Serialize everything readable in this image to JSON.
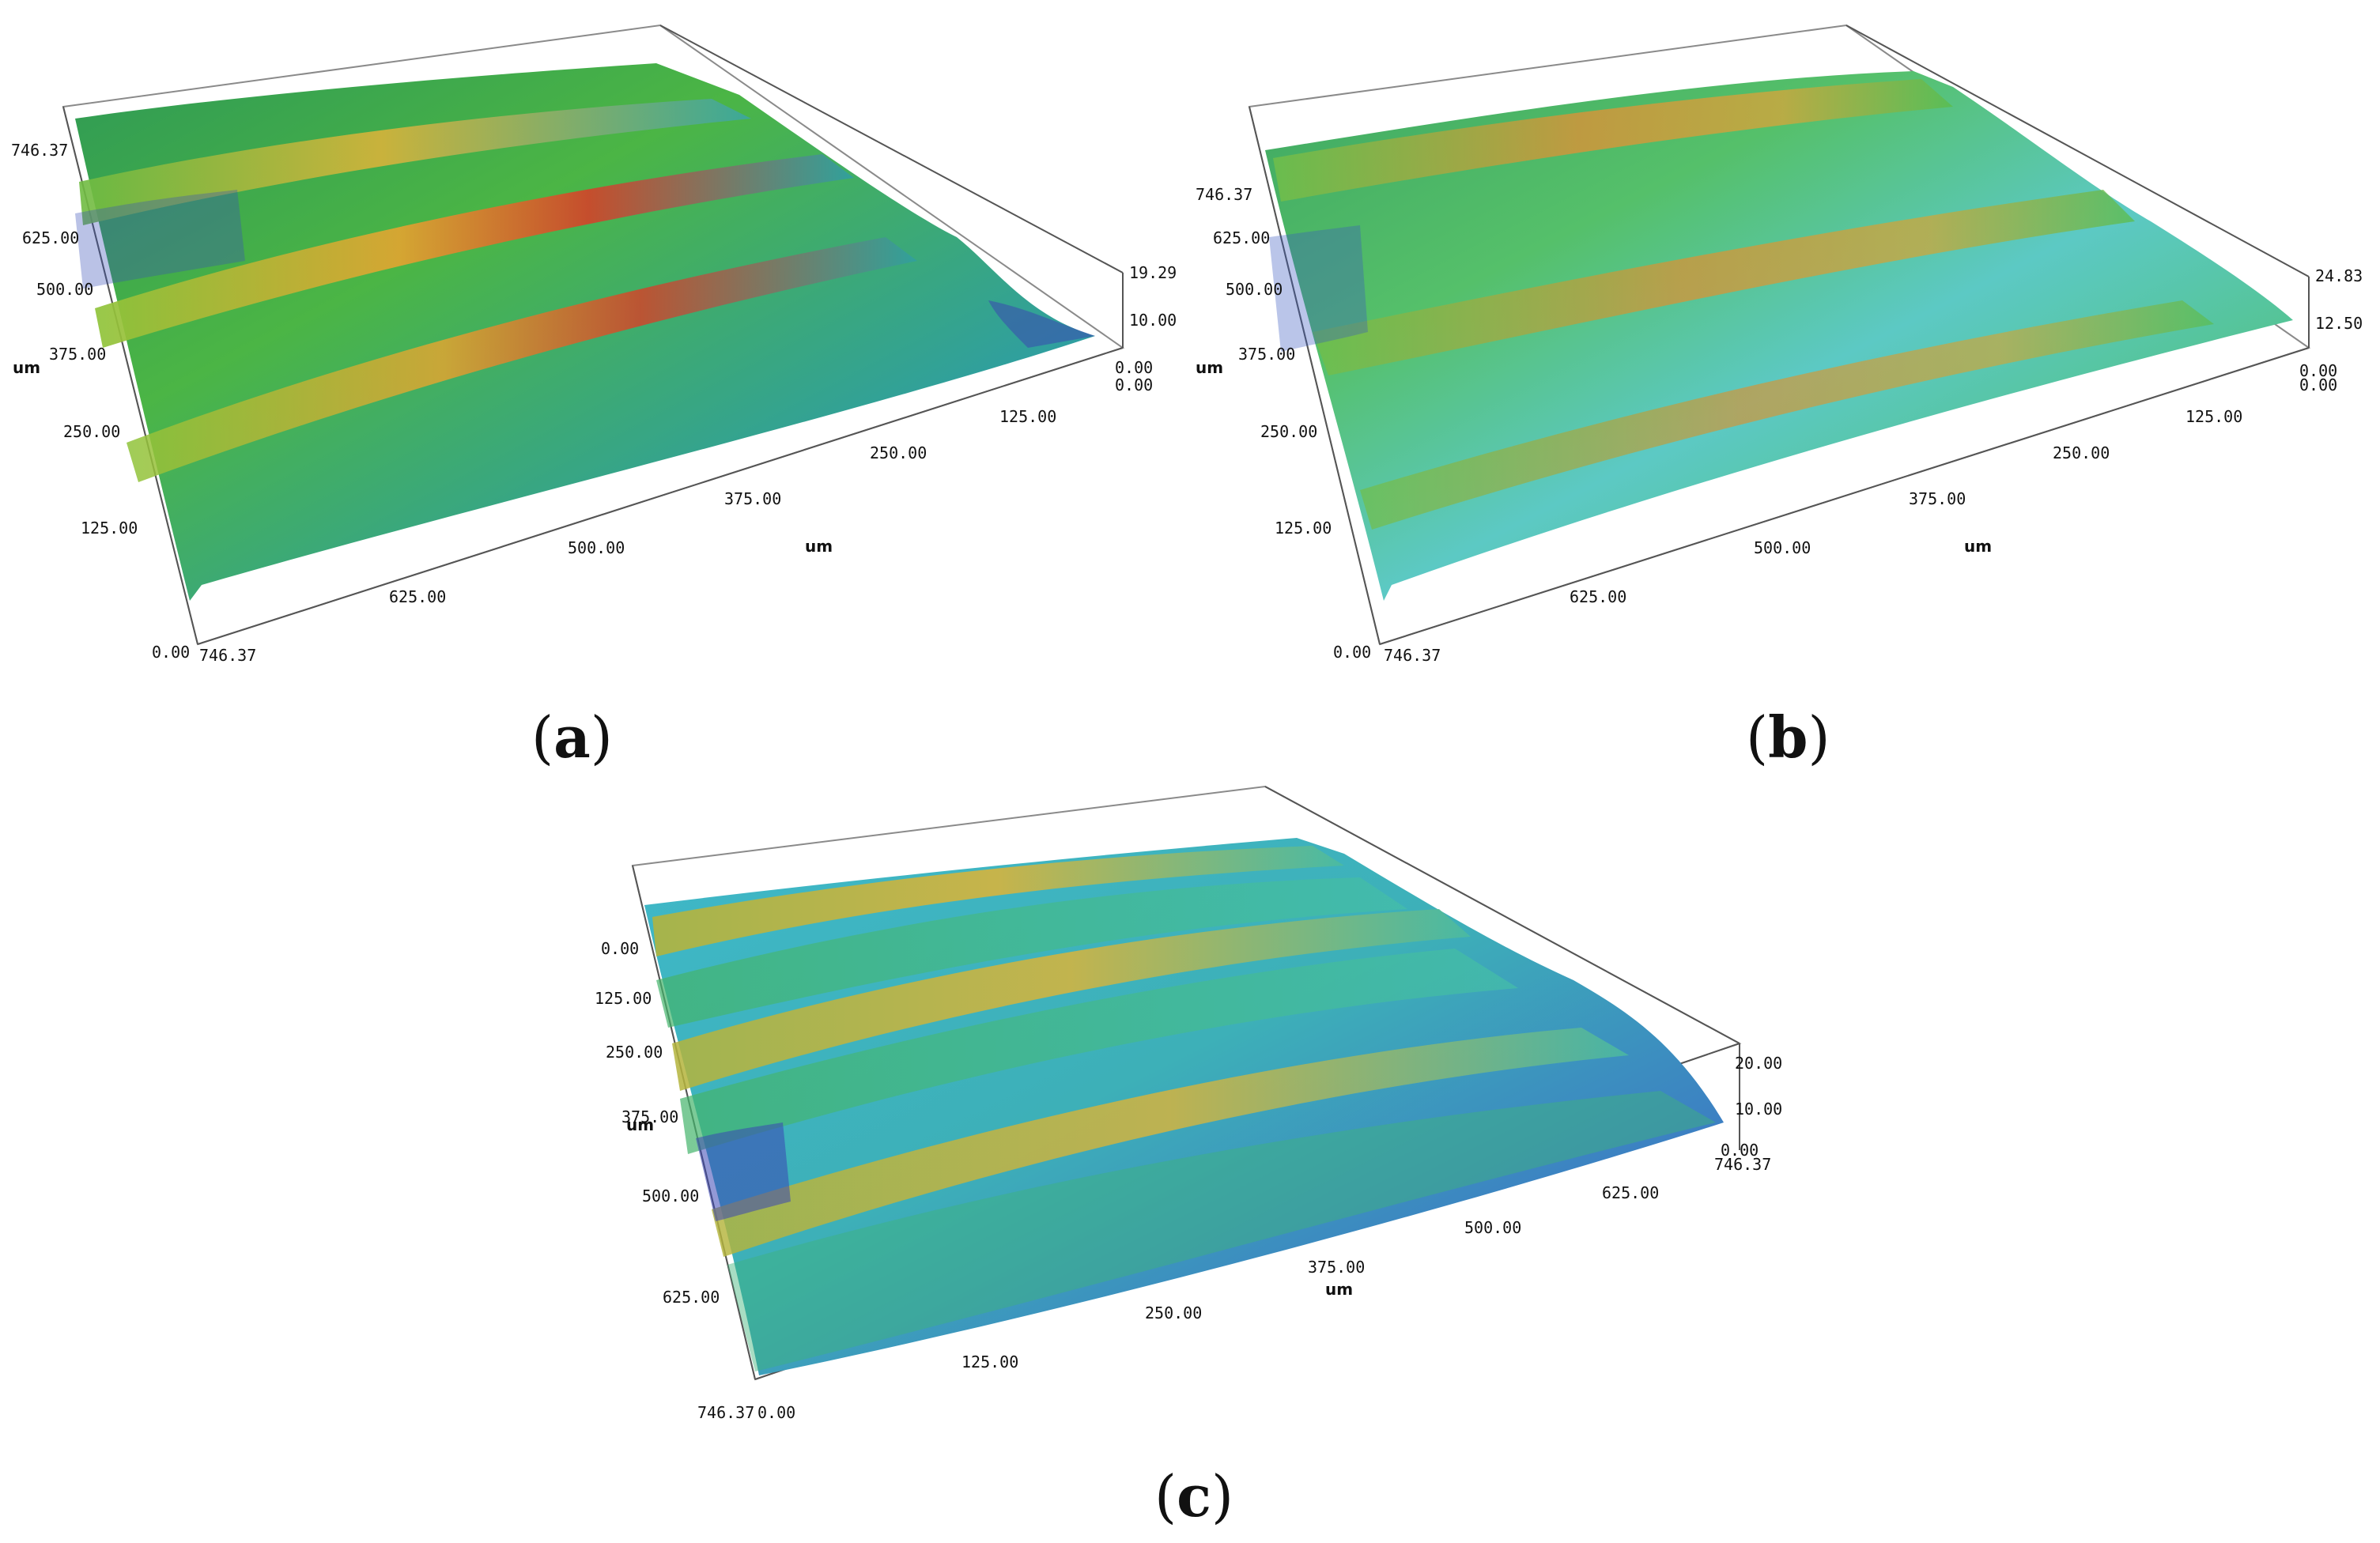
{
  "figure": {
    "panels": [
      {
        "id": "a",
        "caption_open": "(",
        "caption_letter": "a",
        "caption_close": ")",
        "y_ticks": [
          "746.37",
          "625.00",
          "500.00",
          "375.00",
          "250.00",
          "125.00",
          "0.00"
        ],
        "y_unit": "um",
        "x_ticks": [
          "746.37",
          "625.00",
          "500.00",
          "375.00",
          "250.00",
          "125.00",
          "0.00"
        ],
        "x_unit": "um",
        "z_ticks": [
          "19.29",
          "10.00",
          "0.00"
        ],
        "color_note": "green-yellow-red ridges over blue-green base"
      },
      {
        "id": "b",
        "caption_open": "(",
        "caption_letter": "b",
        "caption_close": ")",
        "y_ticks": [
          "746.37",
          "625.00",
          "500.00",
          "375.00",
          "250.00",
          "125.00",
          "0.00"
        ],
        "y_unit": "um",
        "x_ticks": [
          "746.37",
          "625.00",
          "500.00",
          "375.00",
          "250.00",
          "125.00",
          "0.00"
        ],
        "x_unit": "um",
        "z_ticks": [
          "24.83",
          "12.50",
          "0.00"
        ],
        "color_note": "mostly green with orange ridges"
      },
      {
        "id": "c",
        "caption_open": "(",
        "caption_letter": "c",
        "caption_close": ")",
        "y_ticks": [
          "0.00",
          "125.00",
          "250.00",
          "375.00",
          "500.00",
          "625.00",
          "746.37"
        ],
        "y_unit": "um",
        "x_ticks": [
          "0.00",
          "125.00",
          "250.00",
          "375.00",
          "500.00",
          "625.00",
          "746.37"
        ],
        "x_unit": "um",
        "z_ticks": [
          "20.00",
          "10.00",
          "0.00"
        ],
        "color_note": "cyan-blue base with yellow ridges"
      }
    ],
    "colors": {
      "low": "#3b3fb8",
      "mid_low": "#3fb8c8",
      "mid": "#39b54a",
      "mid_high": "#d6b43a",
      "high": "#c4302b",
      "frame": "#8a8a8a"
    }
  }
}
